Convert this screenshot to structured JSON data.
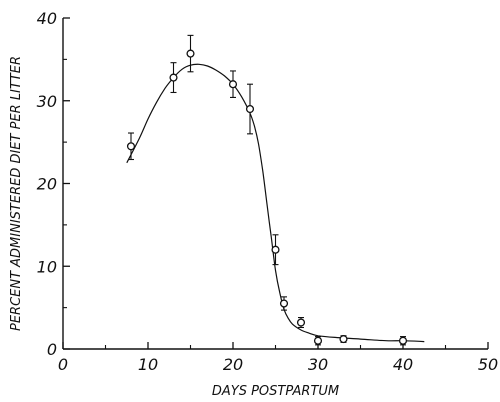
{
  "chart_data": {
    "type": "scatter",
    "title": "",
    "xlabel": "DAYS POSTPARTUM",
    "ylabel": "PERCENT ADMINISTERED DIET PER LITTER",
    "xlim": [
      0,
      50
    ],
    "ylim": [
      0,
      40
    ],
    "x_ticks": [
      0,
      10,
      20,
      30,
      40,
      50
    ],
    "y_ticks": [
      0,
      10,
      20,
      30,
      40
    ],
    "x_tick_labels": [
      "0",
      "10",
      "20",
      "30",
      "40",
      "50"
    ],
    "y_tick_labels": [
      "0",
      "10",
      "20",
      "30",
      "40"
    ],
    "grid": false,
    "series": [
      {
        "marker": "open-circle",
        "points": [
          {
            "x": 8,
            "y": 24.5,
            "err": 1.6
          },
          {
            "x": 13,
            "y": 32.8,
            "err": 1.8
          },
          {
            "x": 15,
            "y": 35.7,
            "err": 2.2
          },
          {
            "x": 20,
            "y": 32.0,
            "err": 1.6
          },
          {
            "x": 22,
            "y": 29.0,
            "err": 3.0
          },
          {
            "x": 25,
            "y": 12.0,
            "err": 1.8
          },
          {
            "x": 26,
            "y": 5.5,
            "err": 0.8
          },
          {
            "x": 28,
            "y": 3.2,
            "err": 0.6
          },
          {
            "x": 30,
            "y": 1.0,
            "err": 0.5
          },
          {
            "x": 33,
            "y": 1.2,
            "err": 0.4
          },
          {
            "x": 40,
            "y": 1.0,
            "err": 0.5
          }
        ]
      }
    ],
    "fit_curve": {
      "x": [
        7.5,
        9,
        10,
        11,
        12,
        13,
        14,
        15,
        16,
        17,
        18,
        19,
        20,
        21,
        22,
        22.5,
        23,
        23.5,
        24,
        24.5,
        25,
        25.5,
        26,
        26.5,
        27,
        28,
        29,
        30,
        32,
        35,
        38,
        40,
        42.5
      ],
      "y": [
        22.5,
        25.5,
        27.8,
        29.8,
        31.5,
        32.8,
        33.8,
        34.3,
        34.4,
        34.2,
        33.7,
        33.0,
        32.0,
        30.5,
        28.5,
        27.0,
        24.8,
        21.5,
        17.5,
        13.5,
        9.5,
        6.8,
        4.8,
        3.7,
        3.0,
        2.3,
        1.9,
        1.6,
        1.4,
        1.2,
        1.0,
        1.0,
        0.9
      ]
    }
  }
}
